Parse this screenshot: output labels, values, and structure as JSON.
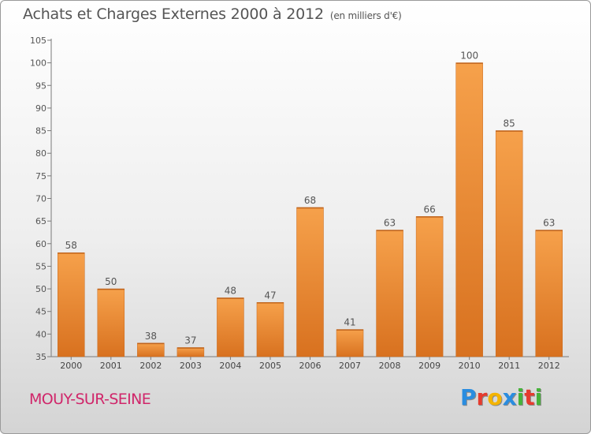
{
  "header": {
    "title": "Achats et Charges Externes 2000 à 2012",
    "subtitle": "(en milliers d'€)"
  },
  "footer": {
    "commune": "MOUY-SUR-SEINE",
    "logo_letters": [
      {
        "char": "P",
        "color": "#2a8de0"
      },
      {
        "char": "r",
        "color": "#e63b2e"
      },
      {
        "char": "o",
        "color": "#f4b400"
      },
      {
        "char": "x",
        "color": "#2a8de0"
      },
      {
        "char": "i",
        "color": "#46b23a"
      },
      {
        "char": "t",
        "color": "#e63b2e"
      },
      {
        "char": "i",
        "color": "#46b23a"
      }
    ]
  },
  "colors": {
    "bar_light": "#f6a14b",
    "bar_dark": "#d8711f",
    "commune": "#d0266a"
  },
  "chart_data": {
    "type": "bar",
    "title": "Achats et Charges Externes 2000 à 2012",
    "subtitle": "(en milliers d'€)",
    "categories": [
      "2000",
      "2001",
      "2002",
      "2003",
      "2004",
      "2005",
      "2006",
      "2007",
      "2008",
      "2009",
      "2010",
      "2011",
      "2012"
    ],
    "values": [
      58,
      50,
      38,
      37,
      48,
      47,
      68,
      41,
      63,
      66,
      100,
      85,
      63
    ],
    "ylim": [
      35,
      105
    ],
    "yticks": [
      35,
      40,
      45,
      50,
      55,
      60,
      65,
      70,
      75,
      80,
      85,
      90,
      95,
      100,
      105
    ],
    "grid": false,
    "data_labels": true
  }
}
